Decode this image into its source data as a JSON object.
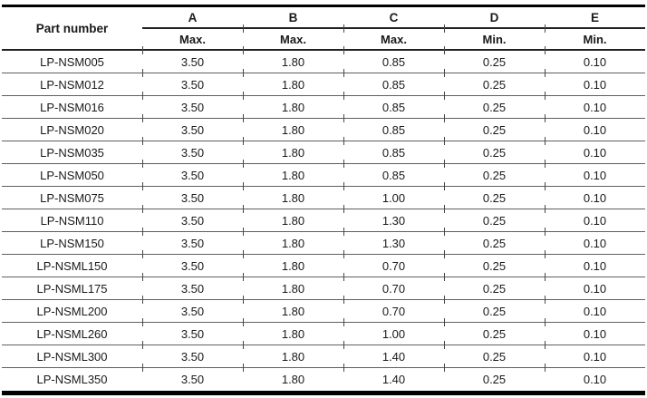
{
  "table": {
    "part_header": "Part number",
    "columns": [
      {
        "letter": "A",
        "limit": "Max."
      },
      {
        "letter": "B",
        "limit": "Max."
      },
      {
        "letter": "C",
        "limit": "Max."
      },
      {
        "letter": "D",
        "limit": "Min."
      },
      {
        "letter": "E",
        "limit": "Min."
      }
    ],
    "rows": [
      {
        "part": "LP-NSM005",
        "values": [
          "3.50",
          "1.80",
          "0.85",
          "0.25",
          "0.10"
        ]
      },
      {
        "part": "LP-NSM012",
        "values": [
          "3.50",
          "1.80",
          "0.85",
          "0.25",
          "0.10"
        ]
      },
      {
        "part": "LP-NSM016",
        "values": [
          "3.50",
          "1.80",
          "0.85",
          "0.25",
          "0.10"
        ]
      },
      {
        "part": "LP-NSM020",
        "values": [
          "3.50",
          "1.80",
          "0.85",
          "0.25",
          "0.10"
        ]
      },
      {
        "part": "LP-NSM035",
        "values": [
          "3.50",
          "1.80",
          "0.85",
          "0.25",
          "0.10"
        ]
      },
      {
        "part": "LP-NSM050",
        "values": [
          "3.50",
          "1.80",
          "0.85",
          "0.25",
          "0.10"
        ]
      },
      {
        "part": "LP-NSM075",
        "values": [
          "3.50",
          "1.80",
          "1.00",
          "0.25",
          "0.10"
        ]
      },
      {
        "part": "LP-NSM110",
        "values": [
          "3.50",
          "1.80",
          "1.30",
          "0.25",
          "0.10"
        ]
      },
      {
        "part": "LP-NSM150",
        "values": [
          "3.50",
          "1.80",
          "1.30",
          "0.25",
          "0.10"
        ]
      },
      {
        "part": "LP-NSML150",
        "values": [
          "3.50",
          "1.80",
          "0.70",
          "0.25",
          "0.10"
        ]
      },
      {
        "part": "LP-NSML175",
        "values": [
          "3.50",
          "1.80",
          "0.70",
          "0.25",
          "0.10"
        ]
      },
      {
        "part": "LP-NSML200",
        "values": [
          "3.50",
          "1.80",
          "0.70",
          "0.25",
          "0.10"
        ]
      },
      {
        "part": "LP-NSML260",
        "values": [
          "3.50",
          "1.80",
          "1.00",
          "0.25",
          "0.10"
        ]
      },
      {
        "part": "LP-NSML300",
        "values": [
          "3.50",
          "1.80",
          "1.40",
          "0.25",
          "0.10"
        ]
      },
      {
        "part": "LP-NSML350",
        "values": [
          "3.50",
          "1.80",
          "1.40",
          "0.25",
          "0.10"
        ]
      }
    ]
  }
}
